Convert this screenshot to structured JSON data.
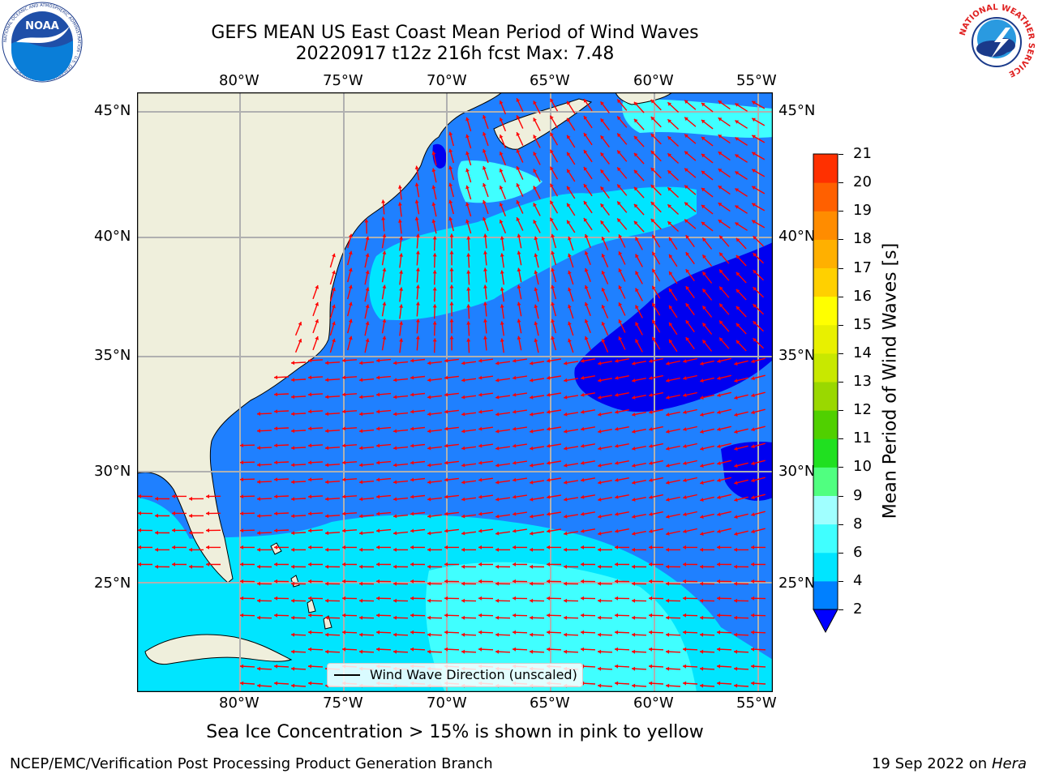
{
  "title": {
    "line1": "GEFS MEAN US East Coast Mean Period of Wind Waves",
    "line2": "20220917 t12z 216h fcst   Max: 7.48"
  },
  "map": {
    "lon_ticks": [
      "80°W",
      "75°W",
      "70°W",
      "65°W",
      "60°W",
      "55°W"
    ],
    "lat_ticks": [
      "45°N",
      "40°N",
      "35°N",
      "30°N",
      "25°N"
    ],
    "extent": {
      "lon": [
        -85,
        -54.5
      ],
      "lat": [
        20.5,
        46
      ]
    },
    "legend_label": "Wind Wave Direction (unscaled)",
    "arrow_color": "#ff0000",
    "land_color": "#efefdc",
    "grid": true
  },
  "colorbar": {
    "label": "Mean Period of Wind Waves [s]",
    "ticks": [
      "2",
      "4",
      "6",
      "8",
      "9",
      "10",
      "11",
      "12",
      "13",
      "14",
      "15",
      "16",
      "17",
      "18",
      "19",
      "20",
      "21"
    ],
    "colors": [
      "#0000ff",
      "#0080ff",
      "#00e5ff",
      "#40ffff",
      "#a0ffff",
      "#50ff80",
      "#20e020",
      "#50d000",
      "#9ad800",
      "#c8e800",
      "#e8f000",
      "#ffff00",
      "#ffd000",
      "#ffb000",
      "#ff8c00",
      "#ff6000",
      "#ff3000",
      "#ff0000"
    ],
    "extend": "min"
  },
  "note": "Sea Ice Concentration > 15% is shown in pink to yellow",
  "footer": {
    "left": "NCEP/EMC/Verification Post Processing Product Generation Branch",
    "date": "19 Sep 2022 on",
    "host": "Hera"
  },
  "logos": {
    "noaa_text": "NOAA",
    "noaa_ring": "NATIONAL OCEANIC AND ATMOSPHERIC ADMINISTRATION · U.S. DEPARTMENT OF COMMERCE",
    "nws_ring": "NATIONAL WEATHER SERVICE"
  }
}
